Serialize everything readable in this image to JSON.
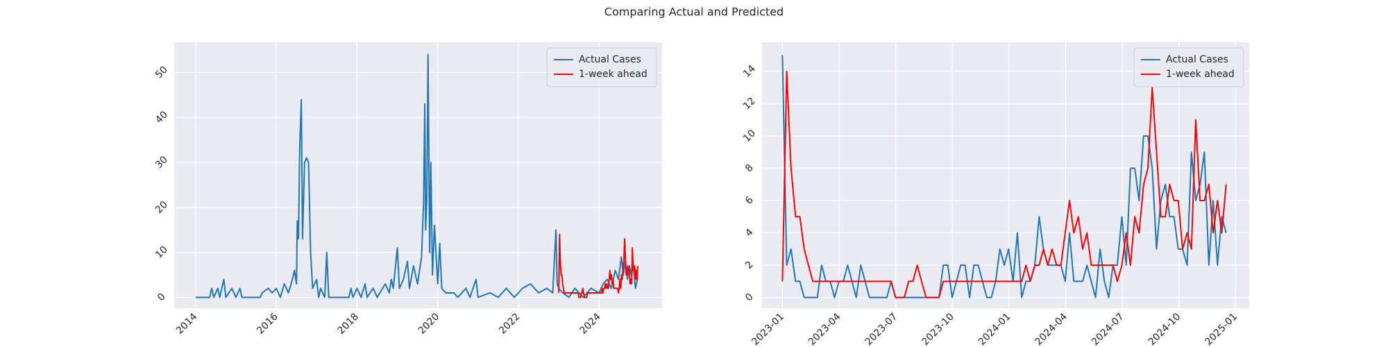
{
  "title": "Comparing Actual and Predicted",
  "chart_data": [
    {
      "type": "line",
      "grid": true,
      "legend": "upper right",
      "xlim": [
        2013.47,
        2025.56
      ],
      "xticks": [
        2014,
        2016,
        2018,
        2020,
        2022,
        2024
      ],
      "ylim": [
        -2.4,
        56.7
      ],
      "yticks": [
        0,
        10,
        20,
        30,
        40,
        50
      ],
      "series": [
        {
          "name": "Actual Cases",
          "color": "#1f77b4",
          "x": [
            2014.0,
            2014.35,
            2014.4,
            2014.45,
            2014.55,
            2014.6,
            2014.7,
            2014.75,
            2014.9,
            2015.0,
            2015.1,
            2015.15,
            2015.5,
            2015.6,
            2015.65,
            2015.8,
            2015.9,
            2016.0,
            2016.1,
            2016.2,
            2016.3,
            2016.4,
            2016.45,
            2016.5,
            2016.52,
            2016.55,
            2016.58,
            2016.62,
            2016.65,
            2016.7,
            2016.75,
            2016.8,
            2016.85,
            2016.9,
            2017.0,
            2017.05,
            2017.1,
            2017.2,
            2017.25,
            2017.3,
            2017.8,
            2017.85,
            2017.9,
            2018.0,
            2018.1,
            2018.2,
            2018.25,
            2018.4,
            2018.5,
            2018.7,
            2018.8,
            2018.85,
            2018.9,
            2019.0,
            2019.05,
            2019.15,
            2019.25,
            2019.3,
            2019.4,
            2019.5,
            2019.6,
            2019.65,
            2019.68,
            2019.7,
            2019.73,
            2019.76,
            2019.8,
            2019.83,
            2019.87,
            2019.92,
            2020.0,
            2020.05,
            2020.1,
            2020.2,
            2020.4,
            2020.5,
            2020.7,
            2020.8,
            2020.95,
            2021.0,
            2021.3,
            2021.5,
            2021.7,
            2021.9,
            2022.1,
            2022.3,
            2022.5,
            2022.7,
            2022.85,
            2022.93,
            2022.96,
            2023.0,
            2023.1,
            2023.25,
            2023.4,
            2023.6,
            2023.8,
            2024.0,
            2024.1,
            2024.2,
            2024.3,
            2024.4,
            2024.48,
            2024.55,
            2024.6,
            2024.65,
            2024.7,
            2024.75,
            2024.8,
            2024.85,
            2024.9,
            2024.95
          ],
          "values": [
            0,
            0,
            2,
            0,
            2,
            0,
            4,
            0,
            2,
            0,
            2,
            0,
            0,
            0,
            1,
            2,
            1,
            2,
            0,
            3,
            1,
            4,
            6,
            3,
            17,
            13,
            33,
            44,
            13,
            30,
            31,
            30,
            10,
            2,
            4,
            0,
            2,
            0,
            10,
            0,
            0,
            2,
            0,
            2,
            0,
            3,
            0,
            2,
            0,
            3,
            1,
            4,
            2,
            11,
            2,
            4,
            8,
            2,
            7,
            3,
            9,
            21,
            43,
            15,
            22,
            54,
            10,
            30,
            5,
            16,
            3,
            12,
            2,
            1,
            1,
            0,
            2,
            0,
            4,
            0,
            1,
            0,
            2,
            0,
            2,
            3,
            1,
            2,
            1,
            15,
            3,
            2,
            1,
            0,
            2,
            0,
            2,
            1,
            3,
            4,
            2,
            6,
            4,
            9,
            5,
            8,
            4,
            7,
            5,
            7,
            2,
            4
          ]
        },
        {
          "name": "1-week ahead",
          "color": "#ff0000",
          "x": [
            2023.0,
            2023.019,
            2023.038,
            2023.058,
            2023.077,
            2023.096,
            2023.115,
            2023.134,
            2023.154,
            2023.173,
            2023.192,
            2023.211,
            2023.23,
            2023.25,
            2023.269,
            2023.288,
            2023.307,
            2023.326,
            2023.346,
            2023.365,
            2023.384,
            2023.403,
            2023.422,
            2023.442,
            2023.461,
            2023.48,
            2023.499,
            2023.518,
            2023.538,
            2023.557,
            2023.576,
            2023.595,
            2023.614,
            2023.634,
            2023.653,
            2023.672,
            2023.691,
            2023.71,
            2023.73,
            2023.749,
            2023.768,
            2023.787,
            2023.806,
            2023.826,
            2023.845,
            2023.864,
            2023.883,
            2023.902,
            2023.922,
            2023.941,
            2023.96,
            2023.979,
            2023.998,
            2024.018,
            2024.037,
            2024.056,
            2024.075,
            2024.094,
            2024.114,
            2024.133,
            2024.152,
            2024.171,
            2024.19,
            2024.21,
            2024.229,
            2024.248,
            2024.267,
            2024.286,
            2024.306,
            2024.325,
            2024.344,
            2024.363,
            2024.382,
            2024.402,
            2024.421,
            2024.44,
            2024.459,
            2024.478,
            2024.498,
            2024.517,
            2024.536,
            2024.555,
            2024.574,
            2024.594,
            2024.613,
            2024.632,
            2024.651,
            2024.67,
            2024.69,
            2024.709,
            2024.728,
            2024.747,
            2024.766,
            2024.786,
            2024.805,
            2024.824,
            2024.843,
            2024.862,
            2024.882,
            2024.901,
            2024.92,
            2024.939,
            2024.958
          ],
          "values": [
            1,
            14,
            8,
            5,
            5,
            3,
            2,
            1,
            1,
            1,
            1,
            1,
            1,
            1,
            1,
            1,
            1,
            1,
            1,
            1,
            1,
            1,
            1,
            1,
            1,
            1,
            0,
            0,
            0,
            1,
            1,
            2,
            1,
            0,
            0,
            0,
            0,
            1,
            1,
            1,
            1,
            1,
            1,
            1,
            1,
            1,
            1,
            1,
            1,
            1,
            1,
            1,
            1,
            1,
            1,
            1,
            2,
            1,
            2,
            2,
            3,
            2,
            3,
            2,
            2,
            4,
            6,
            4,
            5,
            3,
            4,
            2,
            2,
            2,
            2,
            2,
            2,
            1,
            2,
            4,
            2,
            5,
            4,
            7,
            8,
            13,
            9,
            5,
            5,
            7,
            6,
            6,
            3,
            4,
            3,
            11,
            6,
            6,
            7,
            4,
            6,
            4,
            7
          ]
        }
      ]
    },
    {
      "type": "line",
      "grid": true,
      "legend": "upper right",
      "xlim": [
        2022.91,
        2025.06
      ],
      "xticks": [
        {
          "value": 2023.0,
          "label": "2023-01"
        },
        {
          "value": 2023.25,
          "label": "2023-04"
        },
        {
          "value": 2023.5,
          "label": "2023-07"
        },
        {
          "value": 2023.75,
          "label": "2023-10"
        },
        {
          "value": 2024.0,
          "label": "2024-01"
        },
        {
          "value": 2024.25,
          "label": "2024-04"
        },
        {
          "value": 2024.5,
          "label": "2024-07"
        },
        {
          "value": 2024.75,
          "label": "2024-10"
        },
        {
          "value": 2025.0,
          "label": "2025-01"
        }
      ],
      "ylim": [
        -0.66,
        15.8
      ],
      "yticks": [
        0,
        2,
        4,
        6,
        8,
        10,
        12,
        14
      ],
      "x": [
        2023.0,
        2023.019,
        2023.038,
        2023.058,
        2023.077,
        2023.096,
        2023.115,
        2023.134,
        2023.154,
        2023.173,
        2023.192,
        2023.211,
        2023.23,
        2023.25,
        2023.269,
        2023.288,
        2023.307,
        2023.326,
        2023.346,
        2023.365,
        2023.384,
        2023.403,
        2023.422,
        2023.442,
        2023.461,
        2023.48,
        2023.499,
        2023.518,
        2023.538,
        2023.557,
        2023.576,
        2023.595,
        2023.614,
        2023.634,
        2023.653,
        2023.672,
        2023.691,
        2023.71,
        2023.73,
        2023.749,
        2023.768,
        2023.787,
        2023.806,
        2023.826,
        2023.845,
        2023.864,
        2023.883,
        2023.902,
        2023.922,
        2023.941,
        2023.96,
        2023.979,
        2023.998,
        2024.018,
        2024.037,
        2024.056,
        2024.075,
        2024.094,
        2024.114,
        2024.133,
        2024.152,
        2024.171,
        2024.19,
        2024.21,
        2024.229,
        2024.248,
        2024.267,
        2024.286,
        2024.306,
        2024.325,
        2024.344,
        2024.363,
        2024.382,
        2024.402,
        2024.421,
        2024.44,
        2024.459,
        2024.478,
        2024.498,
        2024.517,
        2024.536,
        2024.555,
        2024.574,
        2024.594,
        2024.613,
        2024.632,
        2024.651,
        2024.67,
        2024.69,
        2024.709,
        2024.728,
        2024.747,
        2024.766,
        2024.786,
        2024.805,
        2024.824,
        2024.843,
        2024.862,
        2024.882,
        2024.901,
        2024.92,
        2024.939,
        2024.958
      ],
      "series": [
        {
          "name": "Actual Cases",
          "color": "#1f77b4",
          "values": [
            15,
            2,
            3,
            1,
            1,
            0,
            0,
            0,
            0,
            2,
            1,
            1,
            0,
            1,
            1,
            2,
            1,
            0,
            2,
            1,
            0,
            0,
            0,
            0,
            0,
            1,
            0,
            0,
            0,
            0,
            0,
            0,
            0,
            0,
            0,
            0,
            0,
            2,
            2,
            0,
            1,
            2,
            2,
            0,
            2,
            2,
            1,
            0,
            0,
            1,
            3,
            2,
            3,
            1,
            4,
            0,
            1,
            1,
            2,
            5,
            3,
            2,
            2,
            2,
            2,
            1,
            4,
            1,
            1,
            1,
            2,
            1,
            0,
            3,
            1,
            0,
            2,
            2,
            5,
            2,
            8,
            8,
            6,
            10,
            10,
            8,
            3,
            6,
            7,
            5,
            5,
            3,
            3,
            2,
            9,
            6,
            7,
            9,
            2,
            6,
            2,
            5,
            4
          ]
        },
        {
          "name": "1-week ahead",
          "color": "#ff0000",
          "values": [
            1,
            14,
            8,
            5,
            5,
            3,
            2,
            1,
            1,
            1,
            1,
            1,
            1,
            1,
            1,
            1,
            1,
            1,
            1,
            1,
            1,
            1,
            1,
            1,
            1,
            1,
            0,
            0,
            0,
            1,
            1,
            2,
            1,
            0,
            0,
            0,
            0,
            1,
            1,
            1,
            1,
            1,
            1,
            1,
            1,
            1,
            1,
            1,
            1,
            1,
            1,
            1,
            1,
            1,
            1,
            1,
            2,
            1,
            2,
            2,
            3,
            2,
            3,
            2,
            2,
            4,
            6,
            4,
            5,
            3,
            4,
            2,
            2,
            2,
            2,
            2,
            2,
            1,
            2,
            4,
            2,
            5,
            4,
            7,
            8,
            13,
            9,
            5,
            5,
            7,
            6,
            6,
            3,
            4,
            3,
            11,
            6,
            6,
            7,
            4,
            6,
            4,
            7
          ]
        }
      ]
    }
  ]
}
